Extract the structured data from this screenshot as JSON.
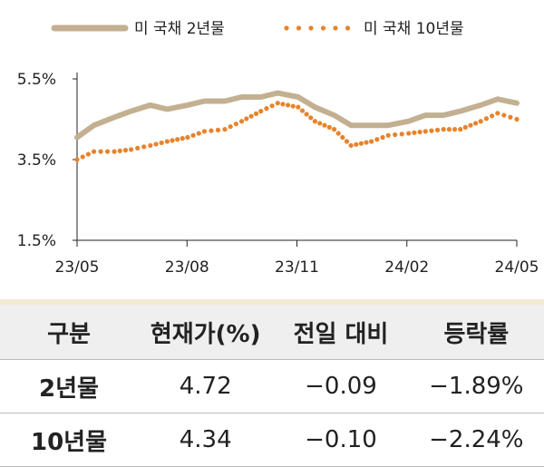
{
  "chart_data": {
    "type": "line",
    "ylim": [
      1.5,
      5.5
    ],
    "y_ticks": [
      "1.5%",
      "3.5%",
      "5.5%"
    ],
    "x_tick_labels": [
      "23/05",
      "23/08",
      "23/11",
      "24/02",
      "24/05"
    ],
    "x": [
      "2023-05-01",
      "2023-05-15",
      "2023-06-01",
      "2023-06-15",
      "2023-07-01",
      "2023-07-15",
      "2023-08-01",
      "2023-08-15",
      "2023-09-01",
      "2023-09-15",
      "2023-10-01",
      "2023-10-15",
      "2023-11-01",
      "2023-11-15",
      "2023-12-01",
      "2023-12-15",
      "2024-01-01",
      "2024-01-15",
      "2024-02-01",
      "2024-02-15",
      "2024-03-01",
      "2024-03-15",
      "2024-04-01",
      "2024-04-15",
      "2024-05-01"
    ],
    "series": [
      {
        "name": "미 국채 2년물",
        "color": "#c3b091",
        "style": "solid",
        "values": [
          4.05,
          4.35,
          4.55,
          4.7,
          4.85,
          4.75,
          4.85,
          4.95,
          4.95,
          5.05,
          5.05,
          5.15,
          5.05,
          4.8,
          4.6,
          4.35,
          4.35,
          4.35,
          4.45,
          4.6,
          4.6,
          4.7,
          4.85,
          5.0,
          4.9
        ]
      },
      {
        "name": "미 국채 10년물",
        "color": "#e8832a",
        "style": "dotted",
        "values": [
          3.5,
          3.7,
          3.7,
          3.75,
          3.85,
          3.95,
          4.05,
          4.2,
          4.25,
          4.45,
          4.7,
          4.9,
          4.8,
          4.45,
          4.25,
          3.85,
          3.95,
          4.1,
          4.15,
          4.2,
          4.25,
          4.25,
          4.45,
          4.65,
          4.5
        ]
      }
    ]
  },
  "table": {
    "headers": [
      "구분",
      "현재가(%)",
      "전일 대비",
      "등락률"
    ],
    "rows": [
      {
        "label": "2년물",
        "current": "4.72",
        "change": "−0.09",
        "rate": "−1.89%"
      },
      {
        "label": "10년물",
        "current": "4.34",
        "change": "−0.10",
        "rate": "−2.24%"
      }
    ]
  }
}
